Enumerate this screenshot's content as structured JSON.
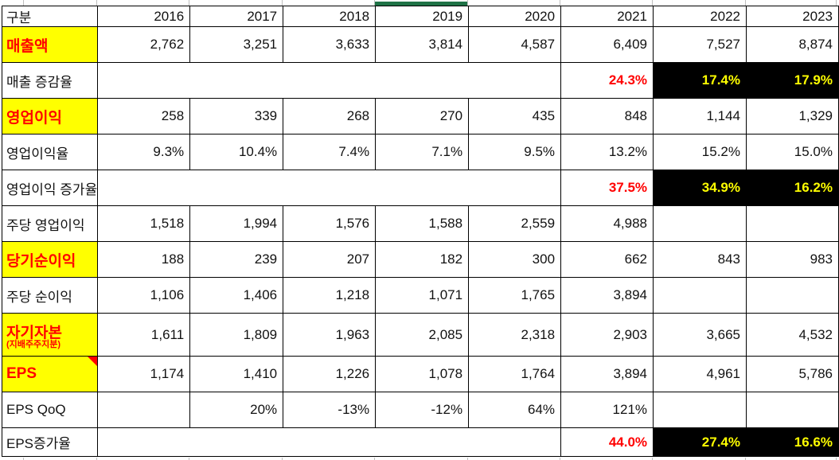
{
  "colors": {
    "highlight_yellow": "#FFFF00",
    "alert_red": "#FF0000",
    "inverse_cell_bg": "#000000",
    "inverse_cell_text": "#FFFF00",
    "selection_green": "#1F7246",
    "gridline_gray": "#BFBFBF"
  },
  "selection": {
    "column": "2019"
  },
  "table": {
    "header": {
      "label": "구분",
      "years": [
        "2016",
        "2017",
        "2018",
        "2019",
        "2020",
        "2021",
        "2022",
        "2023"
      ]
    },
    "rows": [
      {
        "id": "revenue",
        "label": "매출액",
        "highlight": true,
        "cells": [
          {
            "v": "2,762",
            "s": "num"
          },
          {
            "v": "3,251",
            "s": "num"
          },
          {
            "v": "3,633",
            "s": "num"
          },
          {
            "v": "3,814",
            "s": "num"
          },
          {
            "v": "4,587",
            "s": "num"
          },
          {
            "v": "6,409",
            "s": "num"
          },
          {
            "v": "7,527",
            "s": "num"
          },
          {
            "v": "8,874",
            "s": "num"
          }
        ]
      },
      {
        "id": "revenue-growth",
        "label": "매출 증감율",
        "highlight": false,
        "gap": 5,
        "cells": [
          {
            "v": "24.3%",
            "s": "red"
          },
          {
            "v": "17.4%",
            "s": "blk"
          },
          {
            "v": "17.9%",
            "s": "blk"
          }
        ]
      },
      {
        "id": "operating-profit",
        "label": "영업이익",
        "highlight": true,
        "cells": [
          {
            "v": "258",
            "s": "num"
          },
          {
            "v": "339",
            "s": "num"
          },
          {
            "v": "268",
            "s": "num"
          },
          {
            "v": "270",
            "s": "num"
          },
          {
            "v": "435",
            "s": "num"
          },
          {
            "v": "848",
            "s": "num"
          },
          {
            "v": "1,144",
            "s": "num"
          },
          {
            "v": "1,329",
            "s": "num"
          }
        ]
      },
      {
        "id": "operating-margin",
        "label": "영업이익율",
        "highlight": false,
        "cells": [
          {
            "v": "9.3%",
            "s": "num"
          },
          {
            "v": "10.4%",
            "s": "num"
          },
          {
            "v": "7.4%",
            "s": "num"
          },
          {
            "v": "7.1%",
            "s": "num"
          },
          {
            "v": "9.5%",
            "s": "num"
          },
          {
            "v": "13.2%",
            "s": "num"
          },
          {
            "v": "15.2%",
            "s": "num"
          },
          {
            "v": "15.0%",
            "s": "num"
          }
        ]
      },
      {
        "id": "operating-profit-growth",
        "label": "영업이익 증가율",
        "highlight": false,
        "gap": 5,
        "cells": [
          {
            "v": "37.5%",
            "s": "red"
          },
          {
            "v": "34.9%",
            "s": "blk"
          },
          {
            "v": "16.2%",
            "s": "blk"
          }
        ]
      },
      {
        "id": "operating-profit-per-share",
        "label": "주당 영업이익",
        "highlight": false,
        "cells": [
          {
            "v": "1,518",
            "s": "num"
          },
          {
            "v": "1,994",
            "s": "num"
          },
          {
            "v": "1,576",
            "s": "num"
          },
          {
            "v": "1,588",
            "s": "num"
          },
          {
            "v": "2,559",
            "s": "num"
          },
          {
            "v": "4,988",
            "s": "num"
          },
          {
            "v": "",
            "s": "empty"
          },
          {
            "v": "",
            "s": "empty"
          }
        ]
      },
      {
        "id": "net-income",
        "label": "당기순이익",
        "highlight": true,
        "cells": [
          {
            "v": "188",
            "s": "num"
          },
          {
            "v": "239",
            "s": "num"
          },
          {
            "v": "207",
            "s": "num"
          },
          {
            "v": "182",
            "s": "num"
          },
          {
            "v": "300",
            "s": "num"
          },
          {
            "v": "662",
            "s": "num"
          },
          {
            "v": "843",
            "s": "num"
          },
          {
            "v": "983",
            "s": "num"
          }
        ]
      },
      {
        "id": "net-income-per-share",
        "label": "주당 순이익",
        "highlight": false,
        "cells": [
          {
            "v": "1,106",
            "s": "num"
          },
          {
            "v": "1,406",
            "s": "num"
          },
          {
            "v": "1,218",
            "s": "num"
          },
          {
            "v": "1,071",
            "s": "num"
          },
          {
            "v": "1,765",
            "s": "num"
          },
          {
            "v": "3,894",
            "s": "num"
          },
          {
            "v": "",
            "s": "empty"
          },
          {
            "v": "",
            "s": "empty"
          }
        ]
      },
      {
        "id": "equity",
        "label": "자기자본",
        "sublabel": "(지배주주지분)",
        "highlight": true,
        "tall": true,
        "cells": [
          {
            "v": "1,611",
            "s": "num"
          },
          {
            "v": "1,809",
            "s": "num"
          },
          {
            "v": "1,963",
            "s": "num"
          },
          {
            "v": "2,085",
            "s": "num"
          },
          {
            "v": "2,318",
            "s": "num"
          },
          {
            "v": "2,903",
            "s": "num"
          },
          {
            "v": "3,665",
            "s": "num"
          },
          {
            "v": "4,532",
            "s": "num"
          }
        ]
      },
      {
        "id": "eps",
        "label": "EPS",
        "highlight": true,
        "comment": true,
        "cells": [
          {
            "v": "1,174",
            "s": "num"
          },
          {
            "v": "1,410",
            "s": "num"
          },
          {
            "v": "1,226",
            "s": "num"
          },
          {
            "v": "1,078",
            "s": "num"
          },
          {
            "v": "1,764",
            "s": "num"
          },
          {
            "v": "3,894",
            "s": "num"
          },
          {
            "v": "4,961",
            "s": "num"
          },
          {
            "v": "5,786",
            "s": "num"
          }
        ]
      },
      {
        "id": "eps-qoq",
        "label": "EPS QoQ",
        "highlight": false,
        "cells": [
          {
            "v": "",
            "s": "empty"
          },
          {
            "v": "20%",
            "s": "num"
          },
          {
            "v": "-13%",
            "s": "num"
          },
          {
            "v": "-12%",
            "s": "num"
          },
          {
            "v": "64%",
            "s": "num"
          },
          {
            "v": "121%",
            "s": "num"
          },
          {
            "v": "",
            "s": "empty"
          },
          {
            "v": "",
            "s": "empty"
          }
        ]
      },
      {
        "id": "eps-growth",
        "label": "EPS증가율",
        "highlight": false,
        "short": true,
        "gap": 5,
        "cells": [
          {
            "v": "44.0%",
            "s": "red"
          },
          {
            "v": "27.4%",
            "s": "blk"
          },
          {
            "v": "16.6%",
            "s": "blk"
          }
        ]
      }
    ]
  }
}
